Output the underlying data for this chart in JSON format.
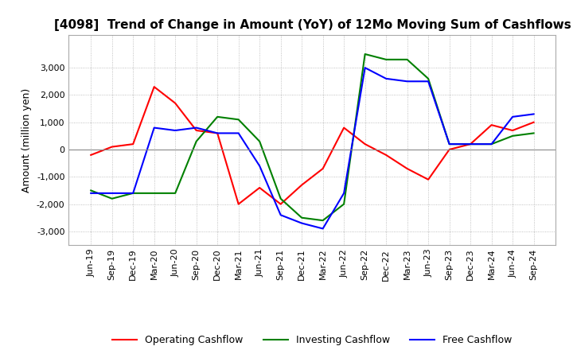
{
  "title": "[4098]  Trend of Change in Amount (YoY) of 12Mo Moving Sum of Cashflows",
  "ylabel": "Amount (million yen)",
  "x_labels": [
    "Jun-19",
    "Sep-19",
    "Dec-19",
    "Mar-20",
    "Jun-20",
    "Sep-20",
    "Dec-20",
    "Mar-21",
    "Jun-21",
    "Sep-21",
    "Dec-21",
    "Mar-22",
    "Jun-22",
    "Sep-22",
    "Dec-22",
    "Mar-23",
    "Jun-23",
    "Sep-23",
    "Dec-23",
    "Mar-24",
    "Jun-24",
    "Sep-24"
  ],
  "operating": [
    -200,
    100,
    200,
    2300,
    1700,
    700,
    600,
    -2000,
    -1400,
    -2000,
    -1300,
    -700,
    800,
    200,
    -200,
    -700,
    -1100,
    0,
    200,
    900,
    700,
    1000
  ],
  "investing": [
    -1500,
    -1800,
    -1600,
    -1600,
    -1600,
    300,
    1200,
    1100,
    300,
    -1800,
    -2500,
    -2600,
    -2000,
    3500,
    3300,
    3300,
    2600,
    200,
    200,
    200,
    500,
    600
  ],
  "free": [
    -1600,
    -1600,
    -1600,
    800,
    700,
    800,
    600,
    600,
    -600,
    -2400,
    -2700,
    -2900,
    -1600,
    3000,
    2600,
    2500,
    2500,
    200,
    200,
    200,
    1200,
    1300
  ],
  "operating_color": "#ff0000",
  "investing_color": "#008000",
  "free_color": "#0000ff",
  "ylim": [
    -3500,
    4200
  ],
  "yticks": [
    -3000,
    -2000,
    -1000,
    0,
    1000,
    2000,
    3000
  ],
  "background_color": "#ffffff",
  "grid_color": "#b0b0b0",
  "title_fontsize": 11,
  "axis_fontsize": 8,
  "ylabel_fontsize": 9
}
